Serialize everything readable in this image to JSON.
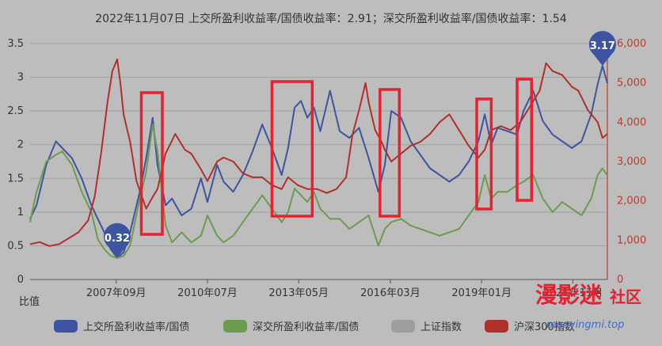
{
  "chart_data": {
    "type": "line",
    "title": "2022年11月07日 上交所盈利收益率/国债收益率：2.91；深交所盈利收益率/国债收益率：1.54",
    "ylabel_left": "比值",
    "ylim_left": [
      0,
      3.5
    ],
    "yticks_left": [
      "0",
      "0.5",
      "1",
      "1.5",
      "2",
      "2.5",
      "3",
      "3.5"
    ],
    "ylim_right": [
      0,
      6000
    ],
    "yticks_right": [
      "0",
      "1,000",
      "2,000",
      "3,000",
      "4,000",
      "5,000",
      "6,000"
    ],
    "xlim": [
      2005.0,
      2022.9
    ],
    "xticks": [
      {
        "label": "2007年09月",
        "value": 2007.67
      },
      {
        "label": "2010年07月",
        "value": 2010.5
      },
      {
        "label": "2013年05月",
        "value": 2013.33
      },
      {
        "label": "2016年03月",
        "value": 2016.17
      },
      {
        "label": "2019年01月",
        "value": 2019.0
      },
      {
        "label": "2021年11月",
        "value": 2021.83
      }
    ],
    "series": [
      {
        "name": "上交所盈利收益率/国债",
        "axis": "left",
        "color": "#3d55a0",
        "x": [
          2005.0,
          2005.2,
          2005.5,
          2005.8,
          2006.0,
          2006.3,
          2006.6,
          2006.9,
          2007.1,
          2007.3,
          2007.5,
          2007.7,
          2007.9,
          2008.1,
          2008.4,
          2008.6,
          2008.8,
          2008.95,
          2009.2,
          2009.4,
          2009.7,
          2010.0,
          2010.3,
          2010.5,
          2010.8,
          2011.0,
          2011.3,
          2011.6,
          2011.9,
          2012.2,
          2012.5,
          2012.8,
          2013.0,
          2013.2,
          2013.4,
          2013.6,
          2013.8,
          2014.0,
          2014.3,
          2014.6,
          2014.9,
          2015.2,
          2015.5,
          2015.8,
          2016.0,
          2016.2,
          2016.5,
          2016.8,
          2017.1,
          2017.4,
          2017.7,
          2018.0,
          2018.3,
          2018.6,
          2018.9,
          2019.1,
          2019.3,
          2019.5,
          2019.8,
          2020.1,
          2020.3,
          2020.6,
          2020.9,
          2021.2,
          2021.5,
          2021.8,
          2022.1,
          2022.4,
          2022.6,
          2022.75,
          2022.9
        ],
        "y": [
          0.9,
          1.1,
          1.7,
          2.05,
          1.95,
          1.8,
          1.5,
          1.1,
          0.9,
          0.7,
          0.45,
          0.32,
          0.4,
          0.7,
          1.3,
          1.8,
          2.4,
          1.7,
          1.1,
          1.2,
          0.95,
          1.05,
          1.5,
          1.15,
          1.7,
          1.45,
          1.3,
          1.55,
          1.9,
          2.3,
          1.95,
          1.55,
          1.95,
          2.55,
          2.65,
          2.4,
          2.55,
          2.2,
          2.8,
          2.2,
          2.1,
          2.25,
          1.8,
          1.3,
          1.7,
          2.5,
          2.4,
          2.05,
          1.85,
          1.65,
          1.55,
          1.45,
          1.55,
          1.75,
          2.05,
          2.45,
          2.0,
          2.25,
          2.2,
          2.15,
          2.5,
          2.8,
          2.35,
          2.15,
          2.05,
          1.95,
          2.05,
          2.45,
          2.9,
          3.17,
          2.91
        ]
      },
      {
        "name": "深交所盈利收益率/国债",
        "axis": "left",
        "color": "#6b9c4e",
        "x": [
          2005.0,
          2005.2,
          2005.5,
          2005.8,
          2006.0,
          2006.3,
          2006.6,
          2006.9,
          2007.1,
          2007.3,
          2007.5,
          2007.7,
          2007.9,
          2008.1,
          2008.4,
          2008.6,
          2008.8,
          2008.95,
          2009.2,
          2009.4,
          2009.7,
          2010.0,
          2010.3,
          2010.5,
          2010.8,
          2011.0,
          2011.3,
          2011.6,
          2011.9,
          2012.2,
          2012.5,
          2012.8,
          2013.0,
          2013.2,
          2013.4,
          2013.6,
          2013.8,
          2014.0,
          2014.3,
          2014.6,
          2014.9,
          2015.2,
          2015.5,
          2015.8,
          2016.0,
          2016.2,
          2016.5,
          2016.8,
          2017.1,
          2017.4,
          2017.7,
          2018.0,
          2018.3,
          2018.6,
          2018.9,
          2019.1,
          2019.3,
          2019.5,
          2019.8,
          2020.1,
          2020.3,
          2020.6,
          2020.9,
          2021.2,
          2021.5,
          2021.8,
          2022.1,
          2022.4,
          2022.6,
          2022.75,
          2022.9
        ],
        "y": [
          0.85,
          1.3,
          1.75,
          1.85,
          1.9,
          1.7,
          1.3,
          1.0,
          0.6,
          0.45,
          0.35,
          0.32,
          0.35,
          0.5,
          1.2,
          1.6,
          2.3,
          1.9,
          0.8,
          0.55,
          0.7,
          0.55,
          0.65,
          0.95,
          0.65,
          0.55,
          0.65,
          0.85,
          1.05,
          1.25,
          1.05,
          0.85,
          1.0,
          1.35,
          1.25,
          1.15,
          1.3,
          1.05,
          0.9,
          0.9,
          0.75,
          0.85,
          0.95,
          0.5,
          0.75,
          0.85,
          0.9,
          0.8,
          0.75,
          0.7,
          0.65,
          0.7,
          0.75,
          0.95,
          1.15,
          1.55,
          1.2,
          1.3,
          1.3,
          1.4,
          1.45,
          1.55,
          1.2,
          1.0,
          1.15,
          1.05,
          0.95,
          1.2,
          1.55,
          1.65,
          1.54
        ]
      },
      {
        "name": "上证指数",
        "axis": "right",
        "color": "#9e9e9e",
        "x": [],
        "y": [],
        "hidden": true
      },
      {
        "name": "沪深300指数",
        "axis": "right",
        "color": "#b0302a",
        "x": [
          2005.0,
          2005.3,
          2005.6,
          2005.9,
          2006.2,
          2006.5,
          2006.8,
          2007.0,
          2007.2,
          2007.4,
          2007.55,
          2007.7,
          2007.8,
          2007.9,
          2008.1,
          2008.3,
          2008.6,
          2008.8,
          2008.95,
          2009.2,
          2009.5,
          2009.8,
          2010.0,
          2010.3,
          2010.5,
          2010.8,
          2011.0,
          2011.3,
          2011.6,
          2011.9,
          2012.2,
          2012.5,
          2012.8,
          2013.0,
          2013.3,
          2013.6,
          2013.9,
          2014.2,
          2014.5,
          2014.8,
          2015.0,
          2015.2,
          2015.4,
          2015.5,
          2015.7,
          2015.9,
          2016.0,
          2016.2,
          2016.5,
          2016.8,
          2017.1,
          2017.4,
          2017.7,
          2018.0,
          2018.3,
          2018.6,
          2018.9,
          2019.1,
          2019.3,
          2019.6,
          2019.9,
          2020.2,
          2020.5,
          2020.8,
          2021.0,
          2021.2,
          2021.5,
          2021.8,
          2022.0,
          2022.3,
          2022.6,
          2022.75,
          2022.9
        ],
        "y": [
          900,
          950,
          850,
          900,
          1050,
          1200,
          1500,
          2100,
          3200,
          4500,
          5300,
          5600,
          5000,
          4200,
          3500,
          2500,
          1800,
          2100,
          2300,
          3200,
          3700,
          3300,
          3200,
          2800,
          2500,
          3000,
          3100,
          3000,
          2700,
          2600,
          2600,
          2400,
          2300,
          2600,
          2400,
          2300,
          2300,
          2200,
          2300,
          2600,
          3700,
          4300,
          5000,
          4500,
          3800,
          3500,
          3300,
          3000,
          3200,
          3400,
          3500,
          3700,
          4000,
          4200,
          3800,
          3400,
          3100,
          3300,
          3800,
          3900,
          3800,
          4000,
          4400,
          4800,
          5500,
          5300,
          5200,
          4900,
          4800,
          4300,
          4000,
          3600,
          3700
        ]
      }
    ],
    "markers": [
      {
        "label": "0.32",
        "x": 2007.7,
        "y": 0.32,
        "series": "上交所盈利收益率/国债"
      },
      {
        "label": "3.17",
        "x": 2022.75,
        "y": 3.17,
        "series": "上交所盈利收益率/国债"
      }
    ],
    "highlight_boxes_years": [
      [
        2008.45,
        2009.1
      ],
      [
        2012.5,
        2013.75
      ],
      [
        2015.85,
        2016.45
      ],
      [
        2018.85,
        2019.3
      ],
      [
        2020.1,
        2020.55
      ]
    ],
    "legend_position": "bottom"
  },
  "watermark": {
    "text": "漫影迷",
    "suffix": "社区",
    "url": "manyingmi.top"
  }
}
